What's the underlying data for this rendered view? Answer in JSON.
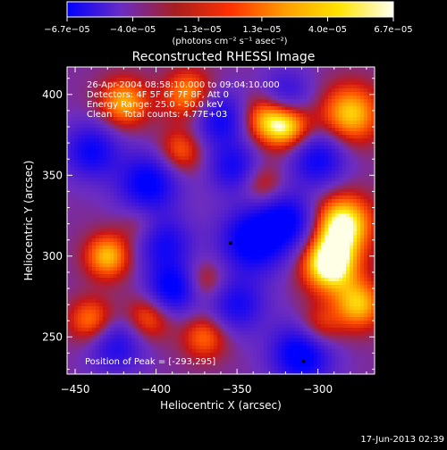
{
  "chart_data": {
    "type": "heatmap",
    "title": "Reconstructed RHESSI Image",
    "xlabel": "Heliocentric X (arcsec)",
    "ylabel": "Heliocentric Y (arcsec)",
    "xlim": [
      -455,
      -265
    ],
    "ylim": [
      227,
      417
    ],
    "xticks": [
      -450,
      -400,
      -350,
      -300
    ],
    "yticks": [
      250,
      300,
      350,
      400
    ],
    "colorbar": {
      "unit_label": "(photons cm⁻² s⁻¹ asec⁻²)",
      "range": [
        -6.7e-05,
        6.7e-05
      ],
      "tick_values": [
        -6.7e-05,
        -4e-05,
        -1.3e-05,
        1.3e-05,
        4e-05,
        6.7e-05
      ],
      "tick_labels": [
        "−6.7e−05",
        "−4.0e−05",
        "−1.3e−05",
        "1.3e−05",
        "4.0e−05",
        "6.7e−05"
      ],
      "colors": [
        "#0000ff",
        "#6a2cc4",
        "#a81e1e",
        "#ff3000",
        "#ff9c00",
        "#ffe400",
        "#fffff0"
      ]
    },
    "info_lines": [
      "26-Apr-2004 08:58:10.000 to 09:04:10.000",
      "Detectors: 4F 5F 6F 7F 8F, Att 0",
      "Energy Range: 25.0 - 50.0 keV",
      "Clean    Total counts: 4.77E+03"
    ],
    "peak": {
      "label": "Position of Peak = [-293,295]",
      "x": -293,
      "y": 295
    },
    "minima_markers": [
      {
        "x": -354,
        "y": 308
      },
      {
        "x": -309,
        "y": 235
      }
    ],
    "blobs": [
      {
        "x": -440,
        "y": 365,
        "a": -0.85,
        "s": 12
      },
      {
        "x": -405,
        "y": 345,
        "a": -1.0,
        "s": 13
      },
      {
        "x": -395,
        "y": 308,
        "a": -0.75,
        "s": 12
      },
      {
        "x": -390,
        "y": 280,
        "a": -1.0,
        "s": 11
      },
      {
        "x": -360,
        "y": 385,
        "a": -0.85,
        "s": 12
      },
      {
        "x": -352,
        "y": 355,
        "a": -0.75,
        "s": 11
      },
      {
        "x": -340,
        "y": 310,
        "a": -1.15,
        "s": 14
      },
      {
        "x": -318,
        "y": 322,
        "a": -0.9,
        "s": 12
      },
      {
        "x": -350,
        "y": 270,
        "a": -0.75,
        "s": 12
      },
      {
        "x": -310,
        "y": 240,
        "a": -1.15,
        "s": 13
      },
      {
        "x": -425,
        "y": 245,
        "a": -0.7,
        "s": 12
      },
      {
        "x": -300,
        "y": 360,
        "a": -0.85,
        "s": 12
      },
      {
        "x": -320,
        "y": 400,
        "a": -0.6,
        "s": 11
      },
      {
        "x": -430,
        "y": 300,
        "a": 0.85,
        "s": 10
      },
      {
        "x": -420,
        "y": 395,
        "a": 0.8,
        "s": 11
      },
      {
        "x": -380,
        "y": 400,
        "a": 0.75,
        "s": 11
      },
      {
        "x": -385,
        "y": 365,
        "a": 0.6,
        "s": 10
      },
      {
        "x": -333,
        "y": 385,
        "a": 0.8,
        "s": 11
      },
      {
        "x": -318,
        "y": 380,
        "a": 0.85,
        "s": 10
      },
      {
        "x": -280,
        "y": 388,
        "a": 0.9,
        "s": 13
      },
      {
        "x": -285,
        "y": 320,
        "a": 1.15,
        "s": 13
      },
      {
        "x": -293,
        "y": 295,
        "a": 1.25,
        "s": 12
      },
      {
        "x": -275,
        "y": 270,
        "a": 0.85,
        "s": 11
      },
      {
        "x": -300,
        "y": 255,
        "a": 0.6,
        "s": 10
      },
      {
        "x": -440,
        "y": 260,
        "a": 0.7,
        "s": 10
      },
      {
        "x": -405,
        "y": 262,
        "a": 0.6,
        "s": 10
      },
      {
        "x": -370,
        "y": 285,
        "a": 0.45,
        "s": 9
      },
      {
        "x": -370,
        "y": 250,
        "a": 0.6,
        "s": 10
      },
      {
        "x": -335,
        "y": 345,
        "a": 0.45,
        "s": 9
      },
      {
        "x": -410,
        "y": 320,
        "a": 0.3,
        "s": 9
      }
    ]
  },
  "footer": {
    "timestamp": "17-Jun-2013 02:39"
  }
}
